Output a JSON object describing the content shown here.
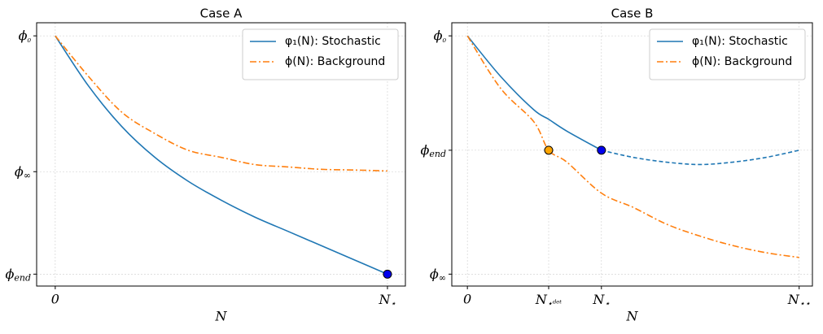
{
  "chart_data": [
    {
      "type": "line",
      "title": "Case A",
      "xlabel": "N",
      "x": [
        0,
        0.1,
        0.2,
        0.3,
        0.4,
        0.5,
        0.6,
        0.7,
        0.8,
        0.9,
        1
      ],
      "series": [
        {
          "name": "φ₁(N): Stochastic",
          "color": "#1f77b4",
          "linestyle": "solid",
          "values": [
            1,
            0.79,
            0.62,
            0.49,
            0.39,
            0.31,
            0.24,
            0.18,
            0.12,
            0.06,
            0
          ]
        },
        {
          "name": "ϕ(N): Background",
          "color": "#ff7f0e",
          "linestyle": "dashdot",
          "values": [
            1,
            0.83,
            0.68,
            0.59,
            0.52,
            0.49,
            0.46,
            0.45,
            0.44,
            0.437,
            0.433
          ]
        }
      ],
      "markers": [
        {
          "x": 1,
          "y": 0,
          "color": "#0000ee"
        }
      ],
      "xlim": [
        -0.056,
        1.054
      ],
      "ylim": [
        -0.05,
        1.055
      ],
      "xticks": [
        {
          "value": 0,
          "label": "0"
        },
        {
          "value": 1,
          "label": "N⋆"
        }
      ],
      "yticks": [
        {
          "value": 1,
          "label": "ϕ₀"
        },
        {
          "value": 0.43,
          "label": "ϕ∞"
        },
        {
          "value": 0,
          "label": "ϕend"
        }
      ],
      "grid": true,
      "legend": "upper right"
    },
    {
      "type": "line",
      "title": "Case B",
      "xlabel": "N",
      "x": [
        0,
        0.1,
        0.2,
        0.245,
        0.3,
        0.404,
        0.5,
        0.6,
        0.7,
        0.8,
        0.9,
        1
      ],
      "series": [
        {
          "name": "φ₁(N): Stochastic",
          "color": "#1f77b4",
          "linestyle": "solid",
          "values": [
            1,
            0.83,
            0.69,
            0.65,
            0.6,
            0.52,
            null,
            null,
            null,
            null,
            null,
            null
          ]
        },
        {
          "name": "ϕ(N): Background",
          "color": "#ff7f0e",
          "linestyle": "dashdot",
          "values": [
            1,
            0.78,
            0.64,
            0.52,
            0.47,
            0.34,
            0.28,
            0.21,
            0.16,
            0.12,
            0.09,
            0.07
          ]
        },
        {
          "color": "#1f77b4",
          "linestyle": "dashed",
          "values": [
            null,
            null,
            null,
            null,
            null,
            0.52,
            0.49,
            0.47,
            0.46,
            0.47,
            0.49,
            0.52
          ]
        }
      ],
      "markers": [
        {
          "x": 0.245,
          "y": 0.52,
          "color": "#ffa500"
        },
        {
          "x": 0.404,
          "y": 0.52,
          "color": "#0000ee"
        }
      ],
      "xlim": [
        -0.047,
        1.04
      ],
      "ylim": [
        -0.05,
        1.055
      ],
      "xticks": [
        {
          "value": 0,
          "label": "0"
        },
        {
          "value": 0.245,
          "label": "N⋆ᵈᵉᵗ"
        },
        {
          "value": 0.404,
          "label": "N⋆"
        },
        {
          "value": 1,
          "label": "N⋆⋆"
        }
      ],
      "yticks": [
        {
          "value": 1,
          "label": "ϕ₀"
        },
        {
          "value": 0.52,
          "label": "ϕend"
        },
        {
          "value": 0,
          "label": "ϕ∞"
        }
      ],
      "grid": true,
      "legend": "upper right"
    }
  ]
}
